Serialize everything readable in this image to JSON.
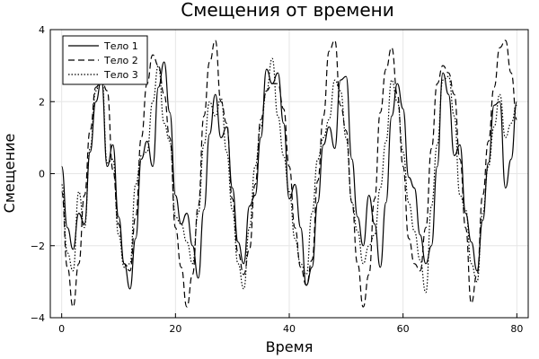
{
  "chart_data": {
    "type": "line",
    "title": "Смещения от времени",
    "xlabel": "Время",
    "ylabel": "Смещение",
    "xlim": [
      -2,
      82
    ],
    "ylim": [
      -4,
      4
    ],
    "xticks": [
      0,
      20,
      40,
      60,
      80
    ],
    "yticks": [
      -4,
      -2,
      0,
      2,
      4
    ],
    "xtick_labels": [
      "0",
      "20",
      "40",
      "60",
      "80"
    ],
    "ytick_labels": [
      "−4",
      "−2",
      "0",
      "2",
      "4"
    ],
    "grid": true,
    "legend_position": "top-left",
    "series": [
      {
        "name": "Тело 1",
        "dash": "solid",
        "x": [
          0,
          1,
          2,
          3,
          4,
          5,
          6,
          7,
          8,
          9,
          10,
          11,
          12,
          13,
          14,
          15,
          16,
          17,
          18,
          19,
          20,
          21,
          22,
          23,
          24,
          25,
          26,
          27,
          28,
          29,
          30,
          31,
          32,
          33,
          34,
          35,
          36,
          37,
          38,
          39,
          40,
          41,
          42,
          43,
          44,
          45,
          46,
          47,
          48,
          49,
          50,
          51,
          52,
          53,
          54,
          55,
          56,
          57,
          58,
          59,
          60,
          61,
          62,
          63,
          64,
          65,
          66,
          67,
          68,
          69,
          70,
          71,
          72,
          73,
          74,
          75,
          76,
          77,
          78,
          79,
          80
        ],
        "y": [
          0.2,
          -1.5,
          -2.1,
          -1.1,
          -1.4,
          0.6,
          2.0,
          2.6,
          0.2,
          0.8,
          -1.2,
          -2.5,
          -3.2,
          -1.8,
          0.4,
          0.9,
          0.2,
          2.4,
          3.1,
          1.7,
          -0.6,
          -1.4,
          -1.1,
          -2.0,
          -2.9,
          -1.0,
          1.1,
          2.2,
          1.0,
          1.3,
          -0.4,
          -1.9,
          -2.5,
          -0.9,
          -0.6,
          1.0,
          2.9,
          2.5,
          2.8,
          1.4,
          -0.7,
          -0.3,
          -1.5,
          -3.1,
          -2.6,
          -0.8,
          0.8,
          1.3,
          0.7,
          2.6,
          2.7,
          0.4,
          -1.2,
          -2.0,
          -0.6,
          -1.4,
          -2.6,
          -0.8,
          1.6,
          2.5,
          1.8,
          -0.1,
          -0.4,
          -1.7,
          -2.5,
          -2.0,
          0.2,
          2.8,
          2.2,
          0.5,
          0.8,
          -1.1,
          -1.9,
          -2.7,
          -1.3,
          0.3,
          1.9,
          2.0,
          -0.4,
          0.4,
          2.0
        ]
      },
      {
        "name": "Тело 2",
        "dash": "dashed",
        "x": [
          0,
          1,
          2,
          3,
          4,
          5,
          6,
          7,
          8,
          9,
          10,
          11,
          12,
          13,
          14,
          15,
          16,
          17,
          18,
          19,
          20,
          21,
          22,
          23,
          24,
          25,
          26,
          27,
          28,
          29,
          30,
          31,
          32,
          33,
          34,
          35,
          36,
          37,
          38,
          39,
          40,
          41,
          42,
          43,
          44,
          45,
          46,
          47,
          48,
          49,
          50,
          51,
          52,
          53,
          54,
          55,
          56,
          57,
          58,
          59,
          60,
          61,
          62,
          63,
          64,
          65,
          66,
          67,
          68,
          69,
          70,
          71,
          72,
          73,
          74,
          75,
          76,
          77,
          78,
          79,
          80
        ],
        "y": [
          -0.5,
          -2.6,
          -3.7,
          -2.5,
          -0.6,
          1.2,
          2.4,
          2.6,
          2.3,
          0.1,
          -1.4,
          -2.5,
          -2.7,
          -1.2,
          1.0,
          2.5,
          3.3,
          3.0,
          2.2,
          1.0,
          -1.5,
          -2.6,
          -3.7,
          -2.8,
          -0.9,
          1.6,
          3.1,
          3.7,
          2.0,
          1.4,
          -0.7,
          -2.2,
          -2.8,
          -2.1,
          -0.3,
          1.5,
          2.3,
          2.5,
          2.5,
          1.8,
          0.2,
          -1.5,
          -2.6,
          -3.1,
          -2.4,
          -0.2,
          1.6,
          3.4,
          3.7,
          1.9,
          1.2,
          -0.8,
          -2.5,
          -3.7,
          -2.8,
          -0.7,
          1.7,
          2.9,
          3.5,
          2.2,
          0.2,
          -1.8,
          -2.5,
          -2.7,
          -1.5,
          0.7,
          2.5,
          3.0,
          2.8,
          2.2,
          0.4,
          -1.5,
          -3.6,
          -2.8,
          -0.6,
          0.9,
          2.4,
          3.5,
          3.7,
          2.8,
          1.5
        ]
      },
      {
        "name": "Тело 3",
        "dash": "dotted",
        "x": [
          0,
          1,
          2,
          3,
          4,
          5,
          6,
          7,
          8,
          9,
          10,
          11,
          12,
          13,
          14,
          15,
          16,
          17,
          18,
          19,
          20,
          21,
          22,
          23,
          24,
          25,
          26,
          27,
          28,
          29,
          30,
          31,
          32,
          33,
          34,
          35,
          36,
          37,
          38,
          39,
          40,
          41,
          42,
          43,
          44,
          45,
          46,
          47,
          48,
          49,
          50,
          51,
          52,
          53,
          54,
          55,
          56,
          57,
          58,
          59,
          60,
          61,
          62,
          63,
          64,
          65,
          66,
          67,
          68,
          69,
          70,
          71,
          72,
          73,
          74,
          75,
          76,
          77,
          78,
          79,
          80
        ],
        "y": [
          -0.3,
          -2.2,
          -2.7,
          -0.5,
          -1.5,
          0.7,
          2.3,
          2.8,
          0.3,
          0.4,
          -1.7,
          -2.6,
          -2.5,
          -0.3,
          0.5,
          0.6,
          2.0,
          3.0,
          1.4,
          0.9,
          -1.2,
          -1.4,
          -1.9,
          -2.5,
          -1.1,
          0.8,
          2.0,
          1.6,
          2.1,
          0.6,
          -1.0,
          -2.5,
          -3.2,
          -1.5,
          0.2,
          1.3,
          2.3,
          3.2,
          1.6,
          0.5,
          -0.5,
          -1.8,
          -2.5,
          -2.8,
          -1.1,
          0.4,
          1.0,
          1.5,
          2.6,
          2.3,
          1.0,
          -0.8,
          -1.6,
          -2.5,
          -2.0,
          -1.7,
          -0.4,
          0.9,
          2.6,
          2.0,
          0.6,
          -0.8,
          -1.6,
          -2.4,
          -3.3,
          -0.9,
          0.8,
          2.6,
          2.7,
          1.6,
          -0.6,
          -1.0,
          -2.5,
          -3.0,
          -1.1,
          0.2,
          1.3,
          2.2,
          1.0,
          1.4,
          1.9
        ]
      }
    ]
  }
}
